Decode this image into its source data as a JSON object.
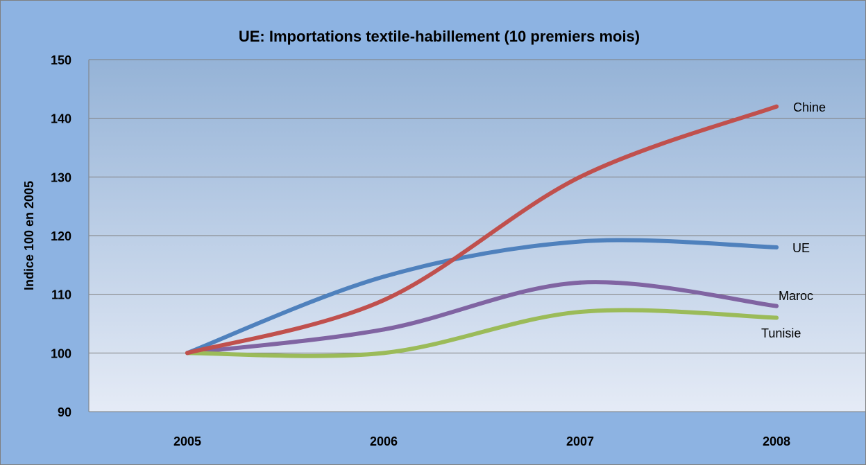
{
  "chart_data": {
    "type": "line",
    "title": "UE: Importations textile-habillement  (10 premiers mois)",
    "ylabel": "Indice 100 en 2005",
    "xlabel": "",
    "x": [
      "2005",
      "2006",
      "2007",
      "2008"
    ],
    "ylim": [
      90,
      150
    ],
    "yticks": [
      90,
      100,
      110,
      120,
      130,
      140,
      150
    ],
    "grid": true,
    "smooth": true,
    "series": [
      {
        "name": "Chine",
        "values": [
          100,
          109,
          130,
          142
        ],
        "color": "#c0504d"
      },
      {
        "name": "UE",
        "values": [
          100,
          113,
          119,
          118
        ],
        "color": "#4f81bd"
      },
      {
        "name": "Maroc",
        "values": [
          100,
          104,
          112,
          108
        ],
        "color": "#8064a2"
      },
      {
        "name": "Tunisie",
        "values": [
          100,
          100,
          107,
          106
        ],
        "color": "#9bbb59"
      }
    ],
    "colors": {
      "outer_background": "#8db3e2",
      "plot_top": "#95b3d7",
      "plot_bottom": "#e5ebf6",
      "gridline": "#7f7f7f"
    }
  }
}
